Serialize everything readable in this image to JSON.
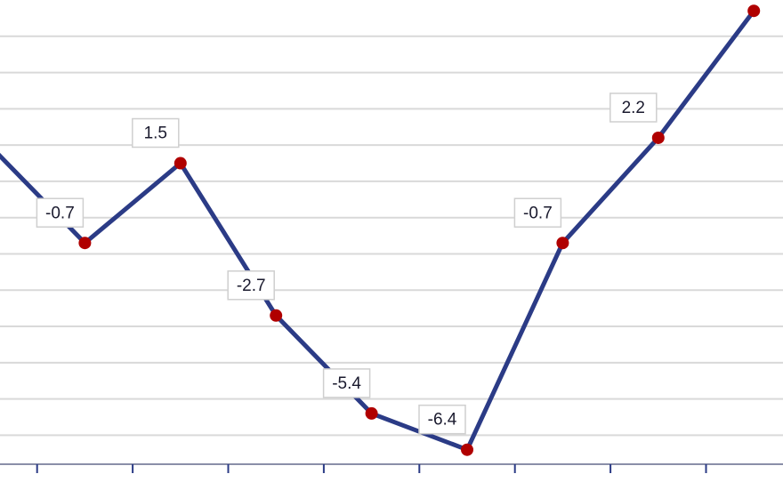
{
  "chart_data": {
    "type": "line",
    "categories": [
      null,
      null,
      null,
      null,
      null,
      null,
      null,
      null,
      null
    ],
    "series": [
      {
        "name": null,
        "color": "#2b3b86",
        "marker_color": "#b00000",
        "values": [
          2.0,
          -0.7,
          1.5,
          -2.7,
          -5.4,
          -6.4,
          -0.7,
          2.2,
          5.7
        ]
      }
    ],
    "ylim": [
      -6.8,
      6.0
    ],
    "yticks": [
      -6,
      -5,
      -4,
      -3,
      -2,
      -1,
      0,
      1,
      2,
      3,
      4,
      5
    ],
    "grid": true
  }
}
